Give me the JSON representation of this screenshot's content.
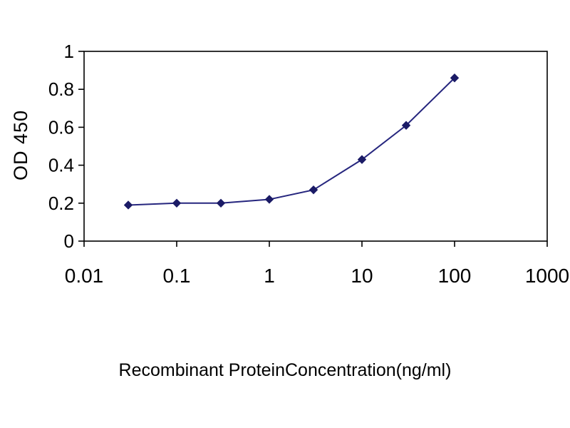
{
  "chart_data": {
    "type": "line",
    "title": "",
    "xlabel": "Recombinant ProteinConcentration(ng/ml)",
    "ylabel": "OD 450",
    "x": [
      0.03,
      0.1,
      0.3,
      1,
      3,
      10,
      30,
      100
    ],
    "y": [
      0.19,
      0.2,
      0.2,
      0.22,
      0.27,
      0.43,
      0.61,
      0.86
    ],
    "x_scale": "log",
    "xlim": [
      0.01,
      1000
    ],
    "ylim": [
      0,
      1
    ],
    "x_tick_values": [
      0.01,
      0.1,
      1,
      10,
      100,
      1000
    ],
    "x_tick_labels": [
      "0.01",
      "0.1",
      "1",
      "10",
      "100",
      "1000"
    ],
    "y_tick_values": [
      0,
      0.2,
      0.4,
      0.6,
      0.8,
      1
    ],
    "y_tick_labels": [
      "0",
      "0.2",
      "0.4",
      "0.6",
      "0.8",
      "1"
    ],
    "grid": false,
    "legend": false,
    "marker": "diamond",
    "colors": {
      "line": "#26267e",
      "marker": "#1b1b66",
      "axis": "#000000",
      "text": "#000000",
      "background": "#ffffff"
    }
  }
}
